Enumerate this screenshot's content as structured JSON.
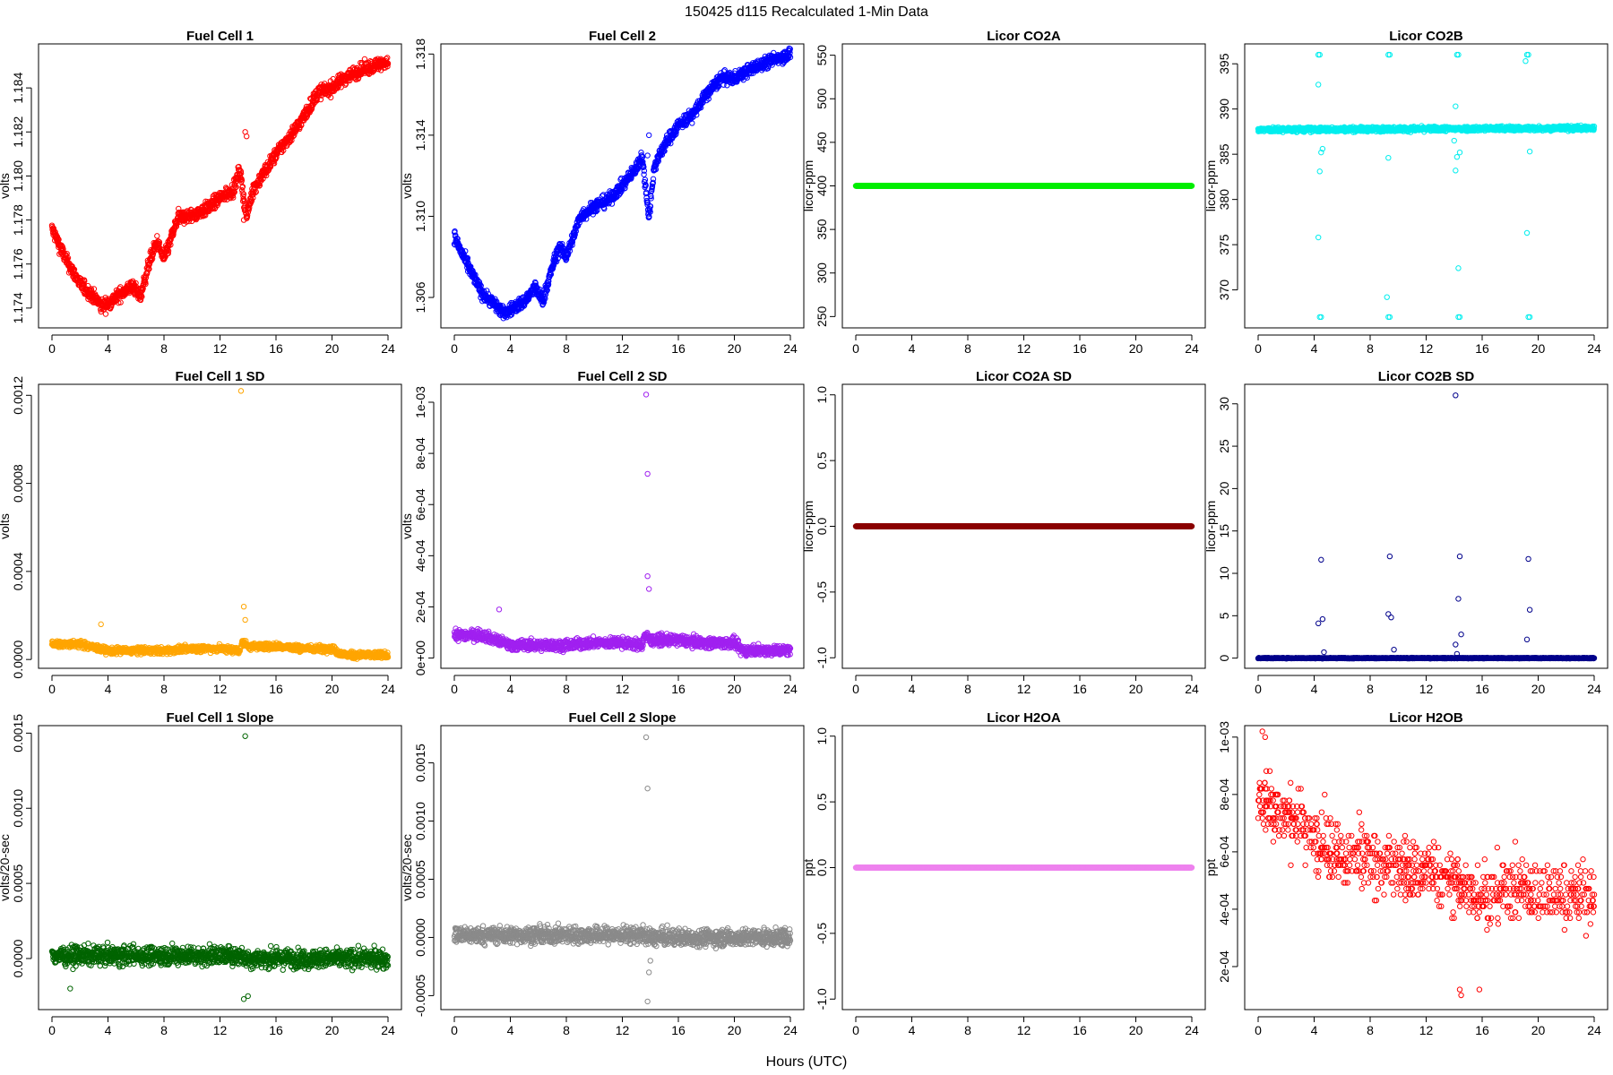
{
  "figure": {
    "title": "150425   d115   Recalculated 1-Min Data",
    "xlabel": "Hours (UTC)"
  },
  "chart_data": [
    {
      "id": "fc1",
      "type": "scatter",
      "title": "Fuel Cell 1",
      "ylabel": "volts",
      "color": "#ff0000",
      "xlim": [
        -0.96,
        24.96
      ],
      "ylim": [
        1.1731,
        1.186
      ],
      "yticks": [
        1.174,
        1.176,
        1.178,
        1.18,
        1.182,
        1.184
      ],
      "yticklabels": [
        "1.174",
        "1.176",
        "1.178",
        "1.180",
        "1.182",
        "1.184"
      ],
      "xticks": [
        0,
        4,
        8,
        12,
        16,
        20,
        24
      ],
      "series": [
        {
          "x": [
            0,
            1,
            2,
            3,
            3.5,
            4,
            5,
            5.8,
            6.3,
            7,
            7.5,
            8,
            9,
            10,
            11,
            12,
            13,
            13.4,
            13.9,
            14.3,
            15,
            16,
            17,
            18,
            19,
            20,
            21,
            22,
            23,
            24
          ],
          "y": [
            1.1776,
            1.1762,
            1.1751,
            1.1745,
            1.1741,
            1.1742,
            1.1747,
            1.175,
            1.1745,
            1.1762,
            1.177,
            1.1762,
            1.1781,
            1.1782,
            1.1785,
            1.179,
            1.1794,
            1.1803,
            1.1781,
            1.1793,
            1.18,
            1.181,
            1.1818,
            1.1827,
            1.1838,
            1.184,
            1.1845,
            1.1848,
            1.185,
            1.1852
          ],
          "noise": 0.0003,
          "outliers": [
            [
              13.8,
              1.182
            ],
            [
              13.9,
              1.1818
            ],
            [
              13.7,
              1.178
            ]
          ]
        }
      ]
    },
    {
      "id": "fc2",
      "type": "scatter",
      "title": "Fuel Cell 2",
      "ylabel": "volts",
      "color": "#0000ff",
      "xlim": [
        -0.96,
        24.96
      ],
      "ylim": [
        1.3045,
        1.3185
      ],
      "yticks": [
        1.306,
        1.31,
        1.314,
        1.318
      ],
      "yticklabels": [
        "1.306",
        "1.310",
        "1.314",
        "1.318"
      ],
      "xticks": [
        0,
        4,
        8,
        12,
        16,
        20,
        24
      ],
      "series": [
        {
          "x": [
            0,
            1,
            2,
            3,
            3.5,
            4,
            5,
            5.8,
            6.3,
            7,
            7.5,
            8,
            9,
            10,
            11,
            12,
            13,
            13.4,
            13.9,
            14.3,
            15,
            16,
            17,
            18,
            19,
            20,
            21,
            22,
            23,
            24
          ],
          "y": [
            1.309,
            1.3075,
            1.3062,
            1.3056,
            1.3052,
            1.3054,
            1.3058,
            1.3065,
            1.3058,
            1.3075,
            1.3085,
            1.308,
            1.31,
            1.3105,
            1.3108,
            1.3115,
            1.3124,
            1.313,
            1.31,
            1.3125,
            1.3135,
            1.3145,
            1.315,
            1.316,
            1.3168,
            1.3168,
            1.3172,
            1.3175,
            1.3178,
            1.318
          ],
          "noise": 0.0003,
          "outliers": [
            [
              13.9,
              1.314
            ],
            [
              13.8,
              1.313
            ],
            [
              13.9,
              1.31
            ]
          ]
        }
      ]
    },
    {
      "id": "co2a",
      "type": "scatter",
      "title": "Licor CO2A",
      "ylabel": "licor-ppm",
      "color": "#00ee00",
      "xlim": [
        -0.96,
        24.96
      ],
      "ylim": [
        237,
        563
      ],
      "yticks": [
        250,
        300,
        350,
        400,
        450,
        500,
        550
      ],
      "yticklabels": [
        "250",
        "300",
        "350",
        "400",
        "450",
        "500",
        "550"
      ],
      "xticks": [
        0,
        4,
        8,
        12,
        16,
        20,
        24
      ],
      "series": [
        {
          "x": [
            0,
            24
          ],
          "y": [
            400,
            400
          ],
          "noise": 0,
          "outliers": []
        }
      ]
    },
    {
      "id": "co2b",
      "type": "scatter",
      "title": "Licor CO2B",
      "ylabel": "licor-ppm",
      "color": "#00eeee",
      "xlim": [
        -0.96,
        24.96
      ],
      "ylim": [
        365.8,
        397.2
      ],
      "yticks": [
        370,
        375,
        380,
        385,
        390,
        395
      ],
      "yticklabels": [
        "370",
        "375",
        "380",
        "385",
        "390",
        "395"
      ],
      "xticks": [
        0,
        4,
        8,
        12,
        16,
        20,
        24
      ],
      "series": [
        {
          "x": [
            0,
            24
          ],
          "y": [
            387.7,
            387.9
          ],
          "noise": 0.25,
          "outliers": [
            [
              4.3,
              396
            ],
            [
              4.4,
              396
            ],
            [
              4.3,
              392.7
            ],
            [
              4.5,
              385.2
            ],
            [
              4.6,
              385.6
            ],
            [
              4.4,
              383.1
            ],
            [
              4.3,
              375.8
            ],
            [
              4.4,
              367
            ],
            [
              4.5,
              367
            ],
            [
              9.3,
              396
            ],
            [
              9.4,
              396
            ],
            [
              9.3,
              384.6
            ],
            [
              9.2,
              369.2
            ],
            [
              9.3,
              367
            ],
            [
              9.4,
              367
            ],
            [
              14.2,
              396
            ],
            [
              14.3,
              396
            ],
            [
              14.1,
              390.3
            ],
            [
              14.0,
              386.5
            ],
            [
              14.2,
              384.7
            ],
            [
              14.4,
              385.2
            ],
            [
              14.1,
              383.2
            ],
            [
              14.3,
              372.4
            ],
            [
              14.3,
              367
            ],
            [
              14.4,
              367
            ],
            [
              19.2,
              396
            ],
            [
              19.3,
              396
            ],
            [
              19.1,
              395.3
            ],
            [
              19.4,
              385.3
            ],
            [
              19.2,
              376.3
            ],
            [
              19.3,
              367
            ],
            [
              19.4,
              367
            ]
          ]
        }
      ]
    },
    {
      "id": "fc1sd",
      "type": "scatter",
      "title": "Fuel Cell 1 SD",
      "ylabel": "volts",
      "color": "#ffa500",
      "xlim": [
        -0.96,
        24.96
      ],
      "ylim": [
        -4e-05,
        0.00125
      ],
      "yticks": [
        0,
        0.0004,
        0.0008,
        0.0012
      ],
      "yticklabels": [
        "0.0000",
        "0.0004",
        "0.0008",
        "0.0012"
      ],
      "xticks": [
        0,
        4,
        8,
        12,
        16,
        20,
        24
      ],
      "series": [
        {
          "x": [
            0,
            2,
            4,
            6,
            8,
            10,
            12,
            13.4,
            13.6,
            14,
            16,
            18,
            20,
            20.5,
            21,
            24
          ],
          "y": [
            7e-05,
            7e-05,
            4e-05,
            4e-05,
            4e-05,
            5e-05,
            5e-05,
            4e-05,
            8e-05,
            6e-05,
            6e-05,
            5e-05,
            5e-05,
            3e-05,
            2e-05,
            2e-05
          ],
          "noise": 1.5e-05,
          "outliers": [
            [
              13.5,
              0.00122
            ],
            [
              13.7,
              0.00024
            ],
            [
              13.8,
              0.00018
            ],
            [
              3.5,
              0.00016
            ]
          ]
        }
      ]
    },
    {
      "id": "fc2sd",
      "type": "scatter",
      "title": "Fuel Cell 2 SD",
      "ylabel": "volts",
      "color": "#a020f0",
      "xlim": [
        -0.96,
        24.96
      ],
      "ylim": [
        -4e-05,
        0.00107
      ],
      "yticks": [
        0,
        0.0002,
        0.0004,
        0.0006,
        0.0008,
        0.001
      ],
      "yticklabels": [
        "0e+00",
        "2e-04",
        "4e-04",
        "6e-04",
        "8e-04",
        "1e-03"
      ],
      "xticks": [
        0,
        4,
        8,
        12,
        16,
        20,
        24
      ],
      "series": [
        {
          "x": [
            0,
            2,
            4,
            6,
            8,
            10,
            12,
            13.4,
            13.6,
            14,
            16,
            18,
            20,
            20.5,
            21,
            24
          ],
          "y": [
            9e-05,
            9e-05,
            5e-05,
            5e-05,
            5e-05,
            6e-05,
            6e-05,
            5e-05,
            9e-05,
            7e-05,
            7e-05,
            6e-05,
            6e-05,
            3e-05,
            3e-05,
            3e-05
          ],
          "noise": 2e-05,
          "outliers": [
            [
              13.7,
              0.00103
            ],
            [
              13.8,
              0.00072
            ],
            [
              13.8,
              0.00032
            ],
            [
              13.9,
              0.00027
            ],
            [
              3.2,
              0.00019
            ]
          ]
        }
      ]
    },
    {
      "id": "co2asd",
      "type": "scatter",
      "title": "Licor CO2A SD",
      "ylabel": "licor-ppm",
      "color": "#8b0000",
      "xlim": [
        -0.96,
        24.96
      ],
      "ylim": [
        -1.08,
        1.08
      ],
      "yticks": [
        -1,
        -0.5,
        0,
        0.5,
        1
      ],
      "yticklabels": [
        "-1.0",
        "-0.5",
        "0.0",
        "0.5",
        "1.0"
      ],
      "xticks": [
        0,
        4,
        8,
        12,
        16,
        20,
        24
      ],
      "series": [
        {
          "x": [
            0,
            24
          ],
          "y": [
            0,
            0
          ],
          "noise": 0,
          "outliers": []
        }
      ]
    },
    {
      "id": "co2bsd",
      "type": "scatter",
      "title": "Licor CO2B SD",
      "ylabel": "licor-ppm",
      "color": "#00008b",
      "xlim": [
        -0.96,
        24.96
      ],
      "ylim": [
        -1.2,
        32.3
      ],
      "yticks": [
        0,
        5,
        10,
        15,
        20,
        25,
        30
      ],
      "yticklabels": [
        "0",
        "5",
        "10",
        "15",
        "20",
        "25",
        "30"
      ],
      "xticks": [
        0,
        4,
        8,
        12,
        16,
        20,
        24
      ],
      "series": [
        {
          "x": [
            0,
            24
          ],
          "y": [
            0,
            0
          ],
          "noise": 0.04,
          "outliers": [
            [
              4.3,
              4.1
            ],
            [
              4.5,
              11.6
            ],
            [
              4.6,
              4.6
            ],
            [
              4.7,
              0.7
            ],
            [
              9.3,
              5.2
            ],
            [
              9.4,
              12.0
            ],
            [
              9.5,
              4.8
            ],
            [
              9.7,
              1.0
            ],
            [
              14.1,
              31.0
            ],
            [
              14.3,
              7.0
            ],
            [
              14.4,
              12.0
            ],
            [
              14.5,
              2.8
            ],
            [
              14.1,
              1.6
            ],
            [
              14.2,
              0.5
            ],
            [
              19.2,
              2.2
            ],
            [
              19.3,
              11.7
            ],
            [
              19.4,
              5.7
            ]
          ]
        }
      ]
    },
    {
      "id": "fc1slope",
      "type": "scatter",
      "title": "Fuel Cell 1 Slope",
      "ylabel": "volts/20-sec",
      "color": "#006400",
      "xlim": [
        -0.96,
        24.96
      ],
      "ylim": [
        -0.00034,
        0.00155
      ],
      "yticks": [
        0,
        0.0005,
        0.001,
        0.0015
      ],
      "yticklabels": [
        "0.0000",
        "0.0005",
        "0.0010",
        "0.0015"
      ],
      "xticks": [
        0,
        4,
        8,
        12,
        16,
        20,
        24
      ],
      "series": [
        {
          "x": [
            0,
            13.5,
            14,
            20,
            24
          ],
          "y": [
            2e-05,
            2e-05,
            0,
            0,
            0
          ],
          "noise": 6e-05,
          "outliers": [
            [
              13.8,
              0.00148
            ],
            [
              13.7,
              -0.00027
            ],
            [
              14.0,
              -0.00025
            ],
            [
              1.3,
              -0.0002
            ]
          ]
        }
      ]
    },
    {
      "id": "fc2slope",
      "type": "scatter",
      "title": "Fuel Cell 2 Slope",
      "ylabel": "volts/20-sec",
      "color": "#8a8a8a",
      "xlim": [
        -0.96,
        24.96
      ],
      "ylim": [
        -0.00062,
        0.00182
      ],
      "yticks": [
        -0.0005,
        0,
        0.0005,
        0.001,
        0.0015
      ],
      "yticklabels": [
        "-0.0005",
        "0.0000",
        "0.0005",
        "0.0010",
        "0.0015"
      ],
      "xticks": [
        0,
        4,
        8,
        12,
        16,
        20,
        24
      ],
      "series": [
        {
          "x": [
            0,
            13.5,
            14,
            20,
            24
          ],
          "y": [
            2e-05,
            2e-05,
            0,
            0,
            0
          ],
          "noise": 7e-05,
          "outliers": [
            [
              13.7,
              0.00172
            ],
            [
              13.8,
              0.00128
            ],
            [
              13.8,
              -0.00055
            ],
            [
              13.9,
              -0.0003
            ],
            [
              14.0,
              -0.0002
            ]
          ]
        }
      ]
    },
    {
      "id": "h2oa",
      "type": "scatter",
      "title": "Licor H2OA",
      "ylabel": "ppt",
      "color": "#ee82ee",
      "xlim": [
        -0.96,
        24.96
      ],
      "ylim": [
        -1.08,
        1.08
      ],
      "yticks": [
        -1,
        -0.5,
        0,
        0.5,
        1
      ],
      "yticklabels": [
        "-1.0",
        "-0.5",
        "0.0",
        "0.5",
        "1.0"
      ],
      "xticks": [
        0,
        4,
        8,
        12,
        16,
        20,
        24
      ],
      "series": [
        {
          "x": [
            0,
            24
          ],
          "y": [
            0,
            0
          ],
          "noise": 0,
          "outliers": []
        }
      ]
    },
    {
      "id": "h2ob",
      "type": "scatter",
      "title": "Licor H2OB",
      "ylabel": "ppt",
      "color": "#ff0000",
      "xlim": [
        -0.96,
        24.96
      ],
      "ylim": [
        5e-05,
        0.00104
      ],
      "yticks": [
        0.0002,
        0.0004,
        0.0006,
        0.0008,
        0.001
      ],
      "yticklabels": [
        "2e-04",
        "4e-04",
        "6e-04",
        "8e-04",
        "1e-03"
      ],
      "xticks": [
        0,
        4,
        8,
        12,
        16,
        20,
        24
      ],
      "series": [
        {
          "x": [
            0,
            1,
            3,
            6,
            10,
            14,
            15,
            18,
            21,
            24
          ],
          "y": [
            0.0008,
            0.00075,
            0.0007,
            0.00058,
            0.00055,
            0.0005,
            0.00045,
            0.00048,
            0.00045,
            0.00045
          ],
          "noise": 0.00011,
          "quantum": 2.05e-05,
          "outliers": [
            [
              0.3,
              0.00102
            ],
            [
              0.5,
              0.001
            ],
            [
              14.5,
              0.0001
            ],
            [
              14.4,
              0.00012
            ],
            [
              15.8,
              0.00012
            ]
          ]
        }
      ]
    }
  ]
}
